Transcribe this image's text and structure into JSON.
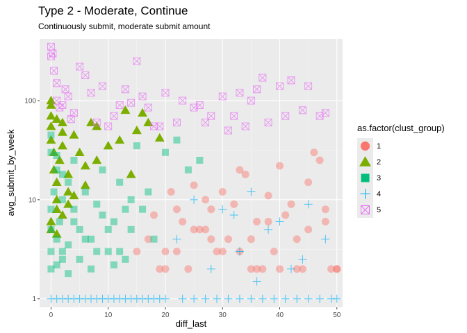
{
  "chart_data": {
    "type": "scatter",
    "title": "Type 2 - Moderate, Continue",
    "subtitle": "Continuously submit, moderate submit amount",
    "xlabel": "diff_last",
    "ylabel": "avg_submit_by_week",
    "xlim": [
      -2,
      51
    ],
    "ylim": [
      0.82,
      420
    ],
    "y_scale": "log10",
    "x_ticks": [
      0,
      10,
      20,
      30,
      40,
      50
    ],
    "y_ticks": [
      1,
      10,
      100
    ],
    "grid": true,
    "legend_title": "as.factor(clust_group)",
    "legend_position": "right",
    "series": [
      {
        "name": "1",
        "color": "#F8766D",
        "marker": "circle",
        "x": [
          20,
          22,
          25,
          28,
          30,
          33,
          35,
          38,
          40,
          42,
          45,
          47,
          50,
          15,
          18,
          24,
          27,
          31,
          36,
          39,
          44,
          48,
          21,
          26,
          29,
          34,
          37,
          41,
          43,
          46,
          49,
          23,
          32,
          17,
          19,
          25,
          30,
          35,
          40,
          45,
          50,
          22,
          28,
          33,
          38,
          43,
          48,
          20,
          27,
          36
        ],
        "y": [
          2,
          3,
          5,
          8,
          12,
          20,
          4,
          6,
          2,
          9,
          15,
          25,
          2,
          3,
          7,
          2,
          10,
          4,
          6,
          3,
          2,
          8,
          12,
          5,
          3,
          18,
          2,
          7,
          4,
          30,
          2,
          6,
          9,
          4,
          2,
          14,
          3,
          2,
          22,
          5,
          2,
          8,
          4,
          3,
          11,
          2,
          6,
          3,
          5,
          2
        ]
      },
      {
        "name": "2",
        "color": "#7CAE00",
        "marker": "triangle",
        "x": [
          0,
          0,
          0,
          0,
          0.5,
          0.5,
          1,
          1,
          1,
          1.5,
          2,
          2,
          3,
          3,
          4,
          5,
          6,
          7,
          8,
          10,
          12,
          13,
          15,
          16,
          17,
          19,
          0,
          0,
          1,
          2,
          3,
          4,
          6,
          8,
          14,
          0,
          1,
          2
        ],
        "y": [
          90,
          70,
          55,
          40,
          30,
          20,
          15,
          10,
          8,
          25,
          60,
          35,
          18,
          12,
          45,
          30,
          22,
          60,
          55,
          35,
          40,
          80,
          50,
          75,
          60,
          42,
          6,
          5,
          4.5,
          7,
          9,
          11,
          14,
          25,
          18,
          100,
          65,
          48
        ]
      },
      {
        "name": "3",
        "color": "#00BF7D",
        "marker": "square",
        "x": [
          0,
          0,
          0,
          0.5,
          1,
          1,
          1.5,
          2,
          2,
          3,
          3,
          4,
          4,
          5,
          6,
          7,
          8,
          9,
          10,
          11,
          12,
          13,
          14,
          15,
          16,
          18,
          20,
          22,
          24,
          26,
          0,
          1,
          2,
          3,
          5,
          7,
          9,
          12,
          14,
          17,
          0,
          2,
          4,
          6,
          8,
          10,
          11,
          13,
          0,
          1
        ],
        "y": [
          3,
          5,
          8,
          12,
          4,
          20,
          6,
          10,
          2.5,
          15,
          3.5,
          8,
          25,
          5,
          12,
          4,
          9,
          20,
          3,
          6,
          15,
          2.5,
          10,
          35,
          8,
          4,
          30,
          40,
          20,
          25,
          2,
          2.2,
          3,
          1.8,
          2.5,
          2,
          7,
          3,
          5,
          12,
          30,
          18,
          6,
          4,
          3,
          5,
          2.2,
          8,
          45,
          28
        ]
      },
      {
        "name": "4",
        "color": "#00B0F6",
        "marker": "plus",
        "x": [
          0,
          1,
          2,
          3,
          4,
          5,
          6,
          7,
          8,
          9,
          10,
          11,
          12,
          13,
          14,
          15,
          16,
          17,
          18,
          19,
          20,
          23,
          25,
          27,
          29,
          31,
          33,
          35,
          37,
          39,
          41,
          43,
          45,
          47,
          49,
          50,
          25,
          30,
          35,
          40,
          45,
          28,
          33,
          38,
          42,
          48,
          32,
          36,
          44,
          22
        ],
        "y": [
          1,
          1,
          1,
          1,
          1,
          1,
          1,
          1,
          1,
          1,
          1,
          1,
          1,
          1,
          1,
          1,
          1,
          1,
          1,
          1,
          1,
          1,
          1,
          1,
          1,
          1,
          1,
          1,
          1,
          1,
          1,
          1,
          1,
          1,
          1,
          1,
          10,
          8,
          12,
          6,
          9,
          2,
          3,
          5,
          2,
          4,
          7,
          1.5,
          2.5,
          4
        ]
      },
      {
        "name": "5",
        "color": "#E76BF3",
        "marker": "square-x",
        "x": [
          0,
          0,
          0.5,
          1,
          1,
          2,
          2.5,
          3,
          4,
          5,
          6,
          7,
          9,
          10,
          11,
          13,
          14,
          15,
          16,
          17,
          19,
          20,
          22,
          25,
          26,
          28,
          30,
          31,
          32,
          33,
          34,
          35,
          37,
          38,
          40,
          41,
          42,
          44,
          45,
          47,
          48,
          0.3,
          1.5,
          3.5,
          8,
          12,
          18,
          23,
          27,
          36
        ],
        "y": [
          350,
          280,
          200,
          150,
          100,
          90,
          130,
          110,
          75,
          220,
          180,
          120,
          140,
          55,
          70,
          130,
          95,
          250,
          110,
          85,
          55,
          120,
          60,
          85,
          90,
          70,
          110,
          50,
          70,
          120,
          55,
          100,
          170,
          60,
          140,
          70,
          160,
          80,
          140,
          70,
          75,
          300,
          85,
          65,
          60,
          90,
          55,
          100,
          60,
          130
        ]
      }
    ]
  }
}
